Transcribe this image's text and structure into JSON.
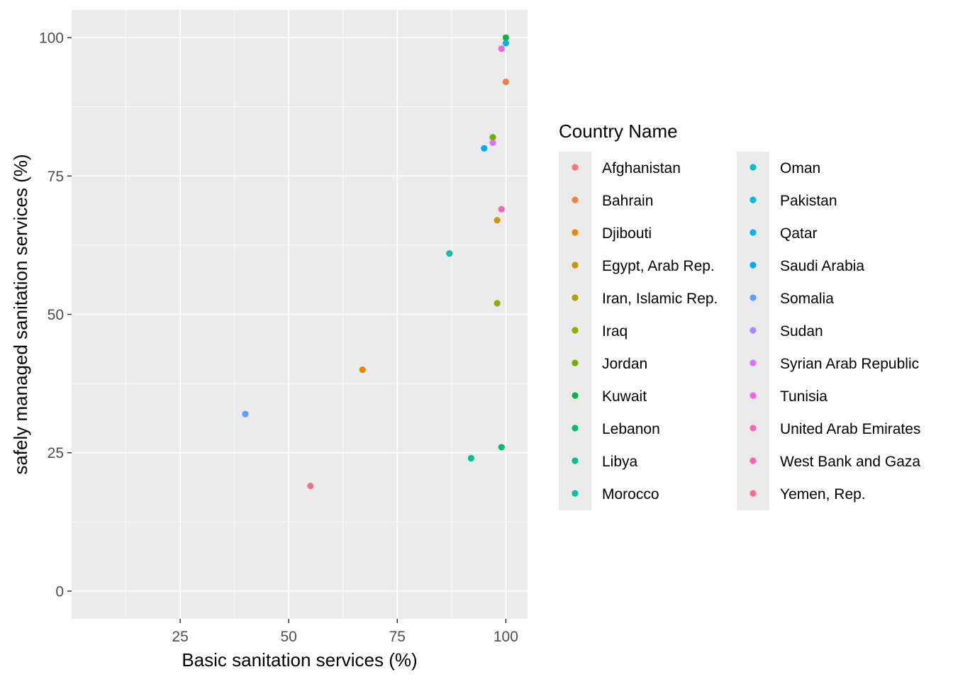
{
  "chart_data": {
    "type": "scatter",
    "xlabel": "Basic sanitation services (%)",
    "ylabel": "safely managed sanitation services (%)",
    "xlim": [
      0,
      105
    ],
    "ylim": [
      -5,
      105
    ],
    "x_ticks": [
      25,
      50,
      75,
      100
    ],
    "y_ticks": [
      0,
      25,
      50,
      75,
      100
    ],
    "grid": true,
    "legend_title": "Country Name",
    "legend_position": "right",
    "series": [
      {
        "name": "Afghanistan",
        "color": "#F8766D",
        "points": []
      },
      {
        "name": "Bahrain",
        "color": "#EE8044",
        "points": [
          [
            100,
            92
          ]
        ]
      },
      {
        "name": "Djibouti",
        "color": "#DE8C00",
        "points": [
          [
            67,
            40
          ]
        ]
      },
      {
        "name": "Egypt, Arab Rep.",
        "color": "#C99800",
        "points": [
          [
            98,
            67
          ]
        ]
      },
      {
        "name": "Iran, Islamic Rep.",
        "color": "#B0A100",
        "points": []
      },
      {
        "name": "Iraq",
        "color": "#93AA00",
        "points": [
          [
            98,
            52
          ]
        ]
      },
      {
        "name": "Jordan",
        "color": "#6BB100",
        "points": [
          [
            97,
            82
          ]
        ]
      },
      {
        "name": "Kuwait",
        "color": "#00BA38",
        "points": [
          [
            100,
            100
          ]
        ]
      },
      {
        "name": "Lebanon",
        "color": "#00BE67",
        "points": [
          [
            99,
            26
          ]
        ]
      },
      {
        "name": "Libya",
        "color": "#00C08B",
        "points": [
          [
            92,
            24
          ]
        ]
      },
      {
        "name": "Morocco",
        "color": "#00C1AA",
        "points": [
          [
            87,
            61
          ]
        ]
      },
      {
        "name": "Oman",
        "color": "#00BFC4",
        "points": []
      },
      {
        "name": "Pakistan",
        "color": "#00BBDD",
        "points": []
      },
      {
        "name": "Qatar",
        "color": "#00B4F0",
        "points": [
          [
            100,
            99
          ]
        ]
      },
      {
        "name": "Saudi Arabia",
        "color": "#00A9FF",
        "points": [
          [
            95,
            80
          ]
        ]
      },
      {
        "name": "Somalia",
        "color": "#619CFF",
        "points": [
          [
            40,
            32
          ]
        ]
      },
      {
        "name": "Sudan",
        "color": "#A58AFF",
        "points": []
      },
      {
        "name": "Syrian Arab Republic",
        "color": "#DB72FB",
        "points": [
          [
            97,
            81
          ]
        ]
      },
      {
        "name": "Tunisia",
        "color": "#F564E3",
        "points": [
          [
            99,
            98
          ]
        ]
      },
      {
        "name": "United Arab Emirates",
        "color": "#FF61C3",
        "points": []
      },
      {
        "name": "West Bank and Gaza",
        "color": "#FF64B0",
        "points": [
          [
            99,
            69
          ]
        ]
      },
      {
        "name": "Yemen, Rep.",
        "color": "#FF6C91",
        "points": [
          [
            55,
            19
          ]
        ]
      }
    ]
  }
}
